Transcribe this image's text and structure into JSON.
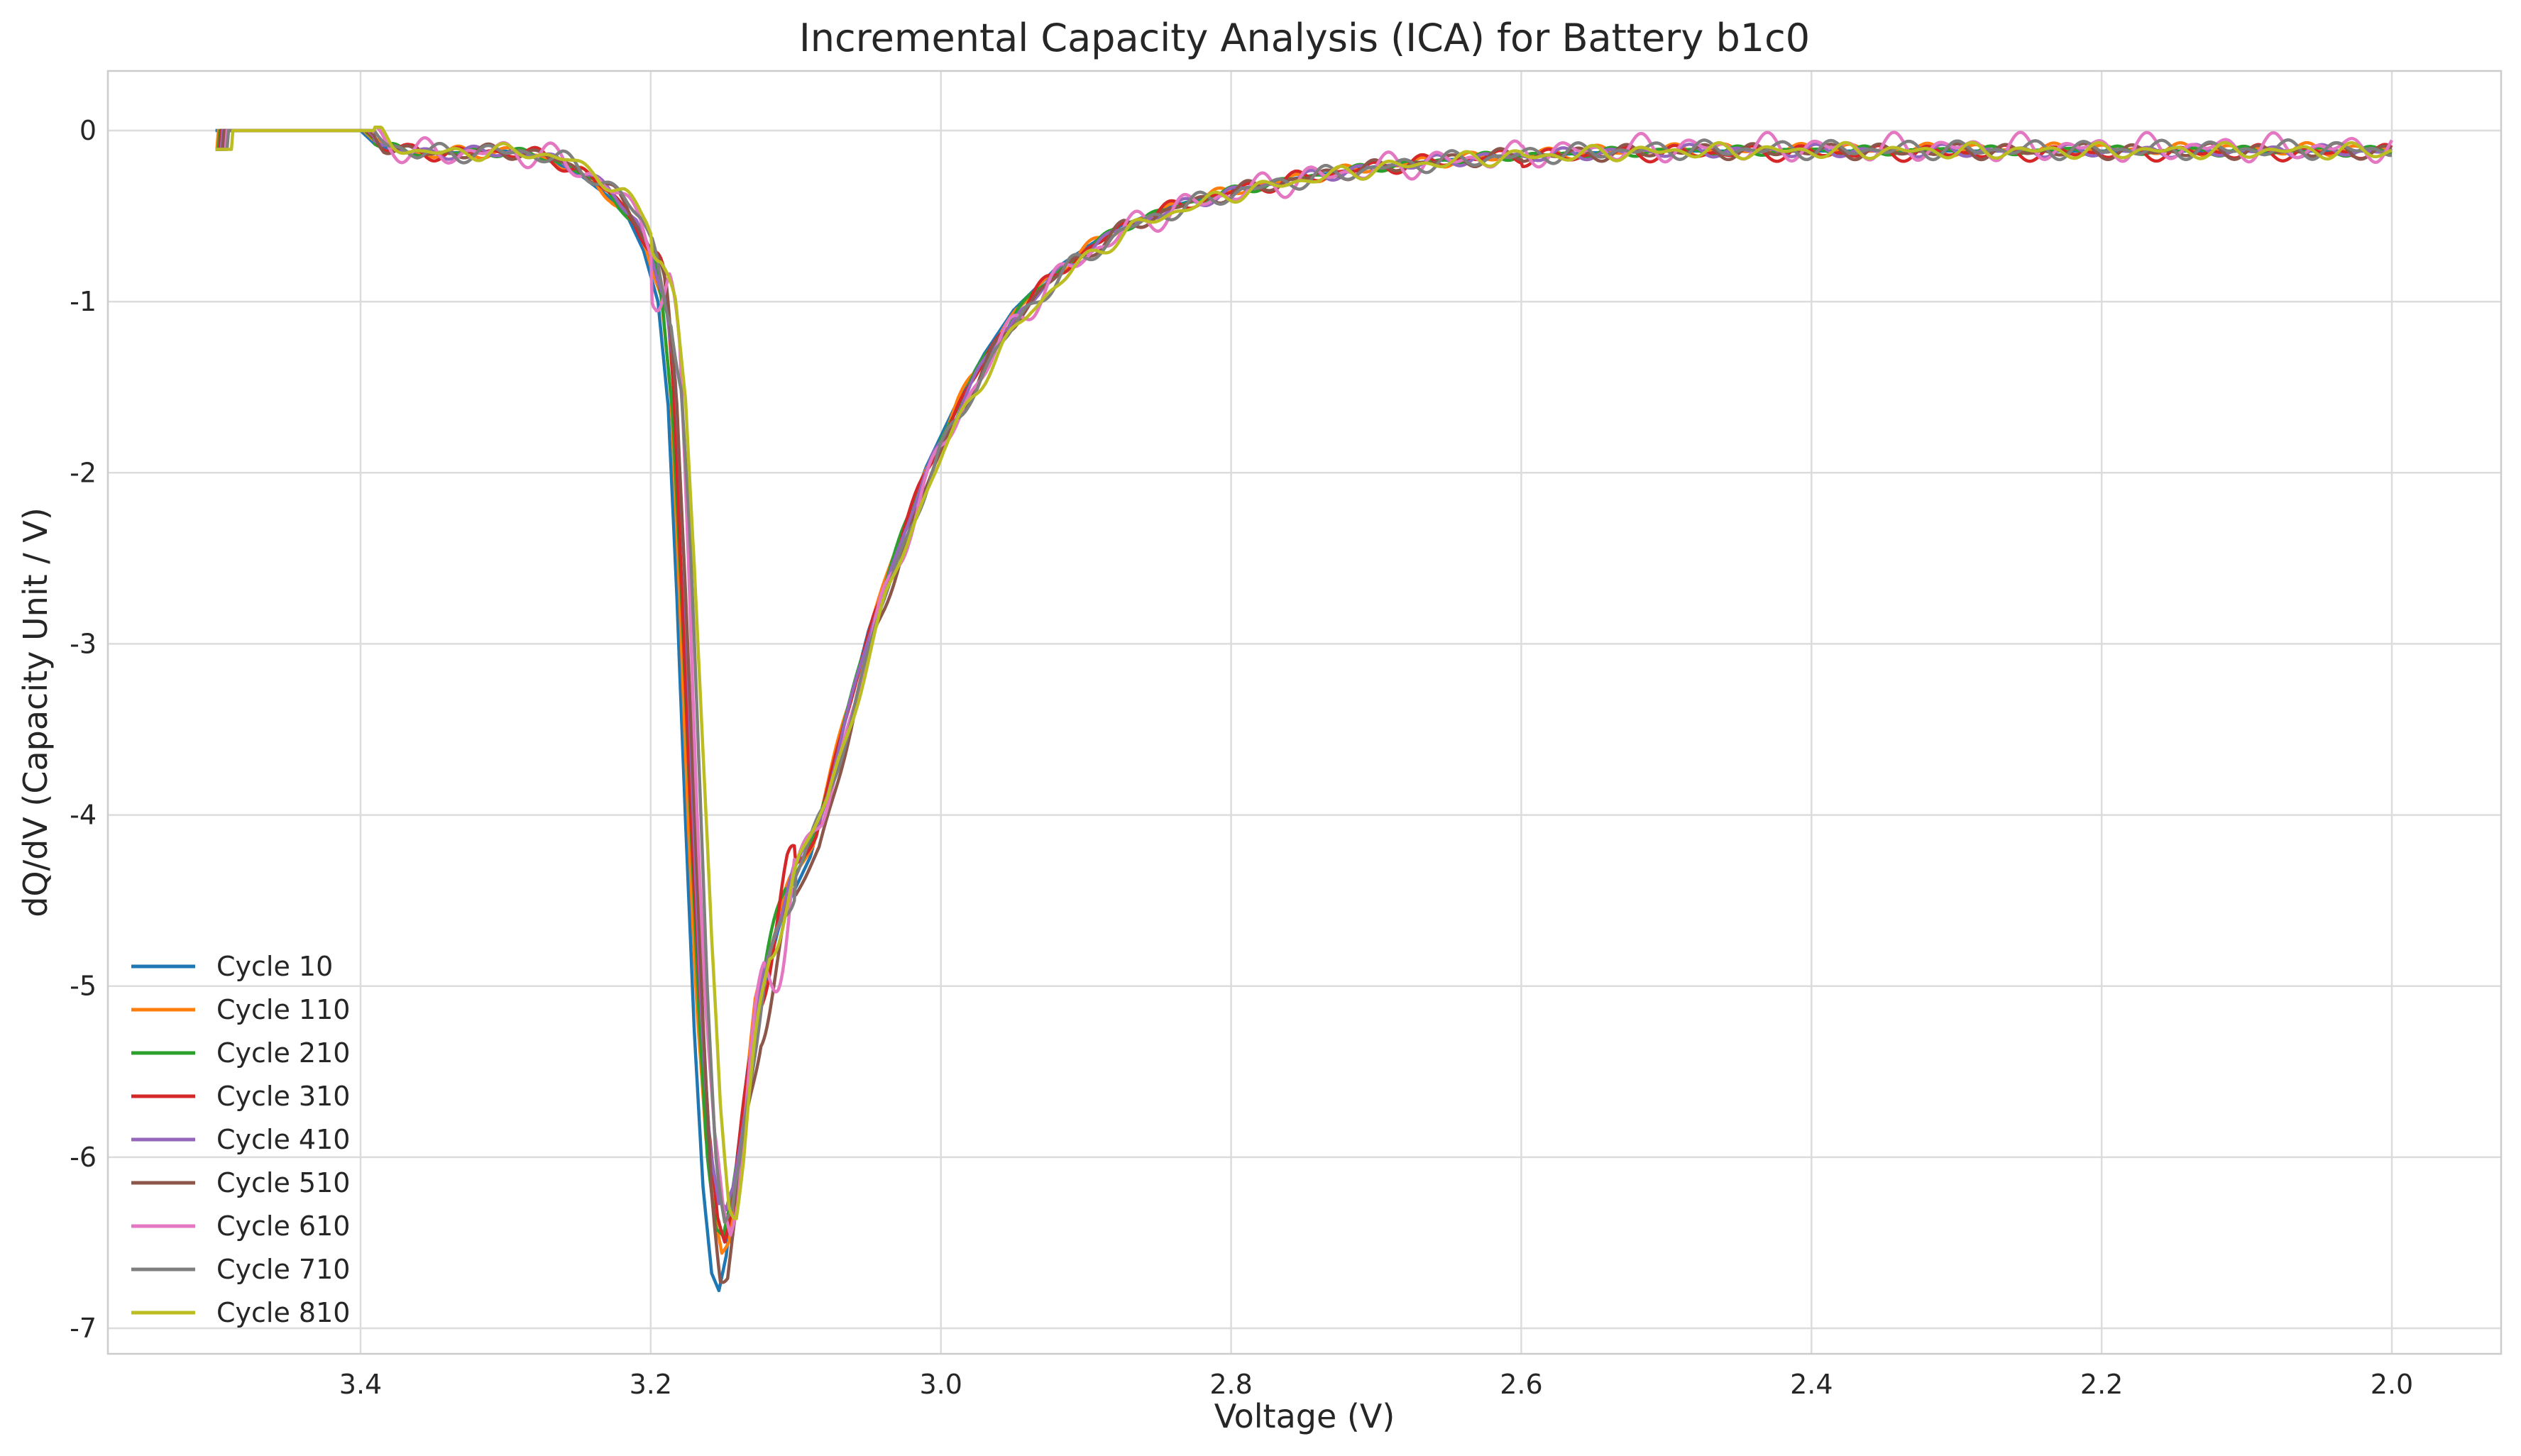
{
  "chart_data": {
    "type": "line",
    "title": "Incremental Capacity Analysis (ICA) for Battery b1c0",
    "xlabel": "Voltage (V)",
    "ylabel": "dQ/dV (Capacity Unit / V)",
    "xlim": [
      3.5,
      2.0
    ],
    "x_reversed": true,
    "ylim": [
      -7,
      0
    ],
    "xticks": [
      "3.4",
      "3.2",
      "3.0",
      "2.8",
      "2.6",
      "2.4",
      "2.2",
      "2.0"
    ],
    "yticks": [
      "0",
      "-1",
      "-2",
      "-3",
      "-4",
      "-5",
      "-6",
      "-7"
    ],
    "grid": true,
    "legend_position": "lower-left",
    "series": [
      {
        "name": "Cycle 10",
        "color": "#1f77b4",
        "shift": 0.0,
        "min": -6.78,
        "tail": -0.12,
        "wiggle": 0.0
      },
      {
        "name": "Cycle 110",
        "color": "#ff7f0e",
        "shift": 0.002,
        "min": -6.6,
        "tail": -0.11,
        "wiggle": 0.04
      },
      {
        "name": "Cycle 210",
        "color": "#2ca02c",
        "shift": 0.003,
        "min": -6.55,
        "tail": -0.12,
        "wiggle": 0.03
      },
      {
        "name": "Cycle 310",
        "color": "#d62728",
        "shift": 0.004,
        "min": -6.5,
        "tail": -0.13,
        "wiggle": 0.05
      },
      {
        "name": "Cycle 410",
        "color": "#9467bd",
        "shift": 0.005,
        "min": -6.45,
        "tail": -0.12,
        "wiggle": 0.04
      },
      {
        "name": "Cycle 510",
        "color": "#8c564b",
        "shift": 0.006,
        "min": -6.7,
        "tail": -0.12,
        "wiggle": 0.05
      },
      {
        "name": "Cycle 610",
        "color": "#e377c2",
        "shift": 0.008,
        "min": -6.4,
        "tail": -0.1,
        "wiggle": 0.09
      },
      {
        "name": "Cycle 710",
        "color": "#7f7f7f",
        "shift": 0.009,
        "min": -6.35,
        "tail": -0.11,
        "wiggle": 0.06
      },
      {
        "name": "Cycle 810",
        "color": "#bcbd22",
        "shift": 0.012,
        "min": -6.2,
        "tail": -0.12,
        "wiggle": 0.05
      }
    ]
  }
}
